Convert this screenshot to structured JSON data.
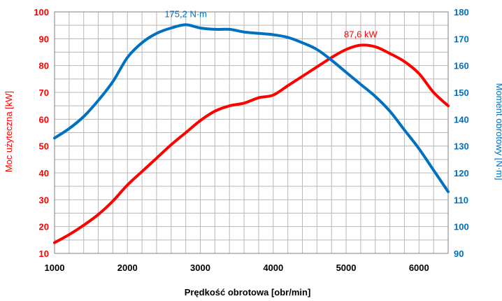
{
  "chart_data": {
    "type": "line",
    "title": "",
    "xlabel": "Prędkość obrotowa [obr/min]",
    "xlim": [
      1000,
      6400
    ],
    "x_ticks": [
      1000,
      2000,
      3000,
      4000,
      5000,
      6000
    ],
    "grid": true,
    "colors": {
      "power": "#ff0000",
      "torque": "#0070c0",
      "grid": "#b8b8b8"
    },
    "axes": {
      "left": {
        "label": "Moc użyteczna [kW]",
        "lim": [
          10,
          100
        ],
        "ticks": [
          10,
          20,
          30,
          40,
          50,
          60,
          70,
          80,
          90,
          100
        ]
      },
      "right": {
        "label": "Moment obrotowy [N·m]",
        "lim": [
          90,
          180
        ],
        "ticks": [
          90,
          100,
          110,
          120,
          130,
          140,
          150,
          160,
          170,
          180
        ]
      }
    },
    "series": [
      {
        "key": "power",
        "axis": "left",
        "x": [
          1000,
          1200,
          1400,
          1600,
          1800,
          2000,
          2200,
          2400,
          2600,
          2800,
          3000,
          3200,
          3400,
          3600,
          3800,
          4000,
          4200,
          4400,
          4600,
          4800,
          5000,
          5200,
          5400,
          5600,
          5800,
          6000,
          6200,
          6400
        ],
        "y": [
          14,
          17,
          20.5,
          24.5,
          29.5,
          35.5,
          40.5,
          45.5,
          50.5,
          55,
          59.5,
          63,
          65,
          66,
          68,
          69,
          72.5,
          76,
          79.5,
          83,
          86,
          87.6,
          87,
          84.5,
          81.5,
          77,
          70,
          65
        ]
      },
      {
        "key": "torque",
        "axis": "right",
        "x": [
          1000,
          1200,
          1400,
          1600,
          1800,
          2000,
          2200,
          2400,
          2600,
          2800,
          3000,
          3200,
          3400,
          3600,
          3800,
          4000,
          4200,
          4400,
          4600,
          4800,
          5000,
          5200,
          5400,
          5600,
          5800,
          6000,
          6200,
          6400
        ],
        "y": [
          133,
          136.5,
          141,
          147,
          154,
          163,
          168.5,
          172,
          174,
          175.2,
          174,
          173.5,
          173.5,
          172.5,
          172,
          171.5,
          170.5,
          168.5,
          166,
          162,
          157.5,
          153,
          148.5,
          143,
          136,
          129,
          121,
          113
        ]
      }
    ],
    "annotations": [
      {
        "text": "175,2 N·m",
        "series": "torque",
        "x": 2800,
        "y": 175.2
      },
      {
        "text": "87,6 kW",
        "series": "power",
        "x": 5200,
        "y": 87.6
      }
    ]
  }
}
